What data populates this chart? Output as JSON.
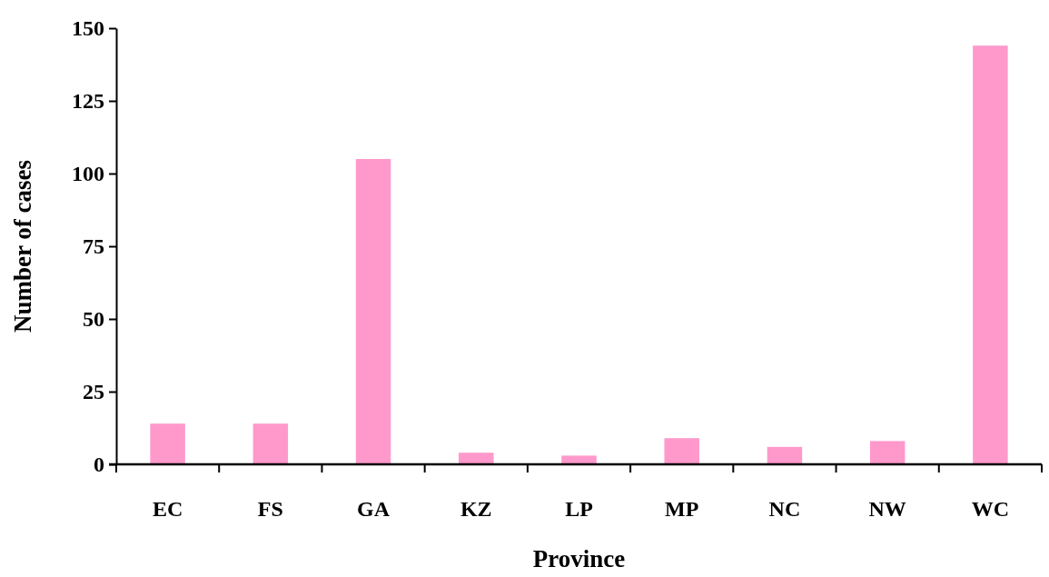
{
  "chart_data": {
    "type": "bar",
    "xlabel": "Province",
    "ylabel": "Number of cases",
    "categories": [
      "EC",
      "FS",
      "GA",
      "KZ",
      "LP",
      "MP",
      "NC",
      "NW",
      "WC"
    ],
    "values": [
      14,
      14,
      105,
      4,
      3,
      9,
      6,
      8,
      144
    ],
    "color": "#ff99cc",
    "ylim": [
      0,
      150
    ],
    "yticks": [
      0,
      25,
      50,
      75,
      100,
      125,
      150
    ],
    "grid": false
  }
}
